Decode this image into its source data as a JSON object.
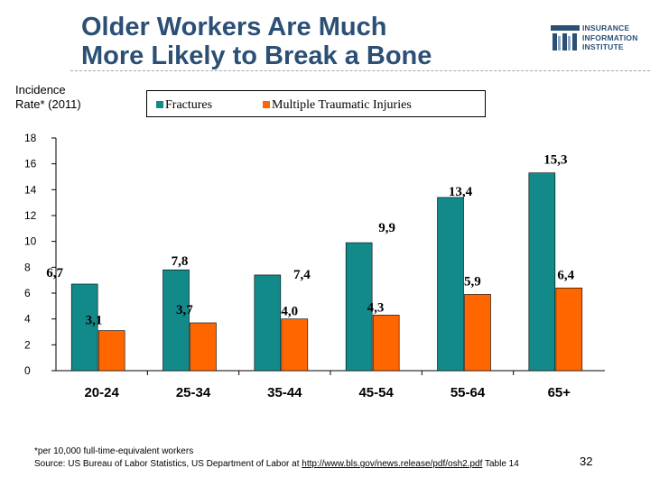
{
  "slide": {
    "title_line1": "Older Workers Are Much",
    "title_line2": "More Likely to Break a Bone",
    "logo_lines": [
      "INSURANCE",
      "INFORMATION",
      "INSTITUTE"
    ],
    "ylabel_line1": "Incidence",
    "ylabel_line2": "Rate* (2011)",
    "footnote_line1": "*per 10,000 full-time-equivalent workers",
    "footnote_source_prefix": "Source: US Bureau of Labor Statistics, US Department of Labor at ",
    "footnote_link": "http://www.bls.gov/news.release/pdf/osh2.pdf",
    "footnote_source_suffix": " Table 14",
    "page_number": "32"
  },
  "colors": {
    "title": "#2b4f75",
    "fractures": "#138a8a",
    "multiple": "#ff6600"
  },
  "chart_data": {
    "type": "bar",
    "categories": [
      "20-24",
      "25-34",
      "35-44",
      "45-54",
      "55-64",
      "65+"
    ],
    "series": [
      {
        "name": "Fractures",
        "values": [
          6.7,
          7.8,
          7.4,
          9.9,
          13.4,
          15.3
        ],
        "labels": [
          "6,7",
          "7,8",
          "7,4",
          "9,9",
          "13,4",
          "15,3"
        ]
      },
      {
        "name": "Multiple Traumatic Injuries",
        "values": [
          3.1,
          3.7,
          4.0,
          4.3,
          5.9,
          6.4
        ],
        "labels": [
          "3,1",
          "3,7",
          "4,0",
          "4,3",
          "5,9",
          "6,4"
        ]
      }
    ],
    "yticks": [
      "0",
      "2",
      "4",
      "6",
      "8",
      "10",
      "12",
      "14",
      "16",
      "18"
    ],
    "ylim": [
      0,
      18
    ],
    "grid": false,
    "legend_position": "top"
  }
}
